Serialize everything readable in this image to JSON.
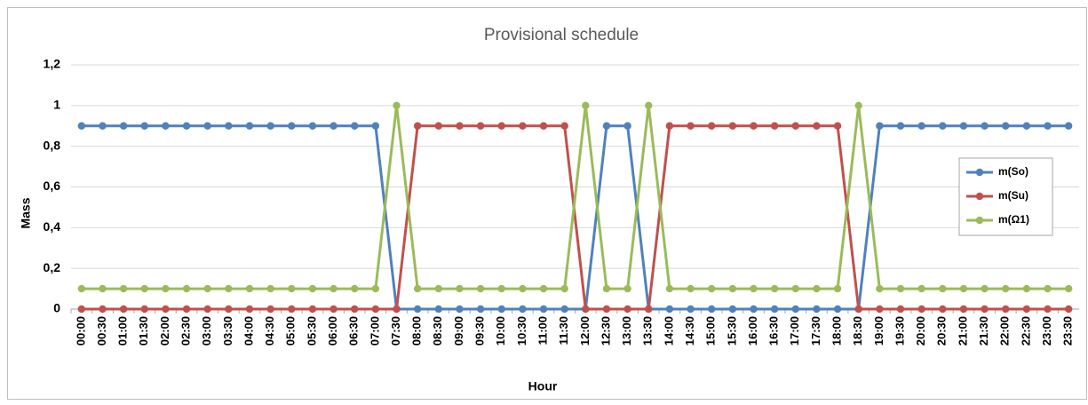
{
  "chart_data": {
    "type": "line",
    "title": "Provisional schedule",
    "xlabel": "Hour",
    "ylabel": "Mass",
    "categories": [
      "00:00",
      "00:30",
      "01:00",
      "01:30",
      "02:00",
      "02:30",
      "03:00",
      "03:30",
      "04:00",
      "04:30",
      "05:00",
      "05:30",
      "06:00",
      "06:30",
      "07:00",
      "07:30",
      "08:00",
      "08:30",
      "09:00",
      "09:30",
      "10:00",
      "10:30",
      "11:00",
      "11:30",
      "12:00",
      "12:30",
      "13:00",
      "13:30",
      "14:00",
      "14:30",
      "15:00",
      "15:30",
      "16:00",
      "16:30",
      "17:00",
      "17:30",
      "18:00",
      "18:30",
      "19:00",
      "19:30",
      "20:00",
      "20:30",
      "21:00",
      "21:30",
      "22:00",
      "22:30",
      "23:00",
      "23:30"
    ],
    "series": [
      {
        "name": "m(So)",
        "color": "#4f81bd",
        "values": [
          0.9,
          0.9,
          0.9,
          0.9,
          0.9,
          0.9,
          0.9,
          0.9,
          0.9,
          0.9,
          0.9,
          0.9,
          0.9,
          0.9,
          0.9,
          0,
          0,
          0,
          0,
          0,
          0,
          0,
          0,
          0,
          0,
          0.9,
          0.9,
          0,
          0,
          0,
          0,
          0,
          0,
          0,
          0,
          0,
          0,
          0,
          0.9,
          0.9,
          0.9,
          0.9,
          0.9,
          0.9,
          0.9,
          0.9,
          0.9,
          0.9
        ]
      },
      {
        "name": "m(Su)",
        "color": "#c0504d",
        "values": [
          0,
          0,
          0,
          0,
          0,
          0,
          0,
          0,
          0,
          0,
          0,
          0,
          0,
          0,
          0,
          0,
          0.9,
          0.9,
          0.9,
          0.9,
          0.9,
          0.9,
          0.9,
          0.9,
          0,
          0,
          0,
          0,
          0.9,
          0.9,
          0.9,
          0.9,
          0.9,
          0.9,
          0.9,
          0.9,
          0.9,
          0,
          0,
          0,
          0,
          0,
          0,
          0,
          0,
          0,
          0,
          0
        ]
      },
      {
        "name": "m(Ω1)",
        "color": "#9bbb59",
        "values": [
          0.1,
          0.1,
          0.1,
          0.1,
          0.1,
          0.1,
          0.1,
          0.1,
          0.1,
          0.1,
          0.1,
          0.1,
          0.1,
          0.1,
          0.1,
          1,
          0.1,
          0.1,
          0.1,
          0.1,
          0.1,
          0.1,
          0.1,
          0.1,
          1,
          0.1,
          0.1,
          1,
          0.1,
          0.1,
          0.1,
          0.1,
          0.1,
          0.1,
          0.1,
          0.1,
          0.1,
          1,
          0.1,
          0.1,
          0.1,
          0.1,
          0.1,
          0.1,
          0.1,
          0.1,
          0.1,
          0.1
        ]
      }
    ],
    "ylim": [
      0,
      1.2
    ],
    "yticks": [
      0,
      {
        "value": 0.2,
        "label": "0,2"
      },
      {
        "value": 0.4,
        "label": "0,4"
      },
      {
        "value": 0.6,
        "label": "0,6"
      },
      {
        "value": 0.8,
        "label": "0,8"
      },
      1,
      {
        "value": 1.2,
        "label": "1,2"
      }
    ],
    "grid": true,
    "legend": "right"
  }
}
